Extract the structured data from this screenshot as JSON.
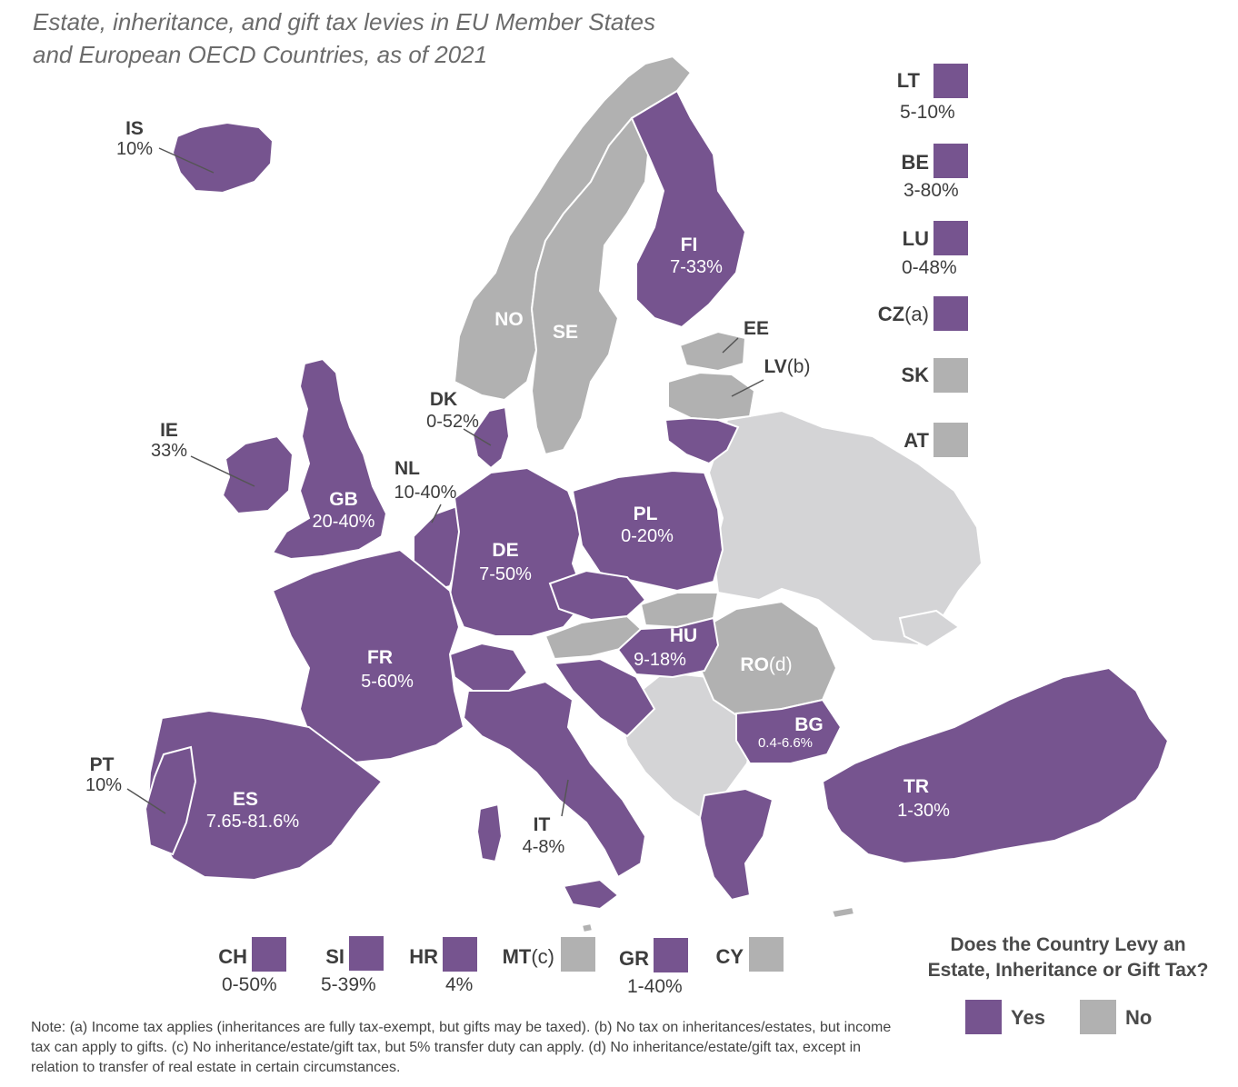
{
  "title": {
    "line1": "Estate, inheritance, and gift tax levies in EU Member States",
    "line2": "and European OECD Countries, as of 2021"
  },
  "colors": {
    "yes": "#76548f",
    "no": "#b1b1b1",
    "nonmember": "#d4d4d6",
    "border": "#ffffff"
  },
  "map_labels": {
    "IS": {
      "code": "IS",
      "rate": "10%",
      "status": "yes"
    },
    "IE": {
      "code": "IE",
      "rate": "33%",
      "status": "yes"
    },
    "GB": {
      "code": "GB",
      "rate": "20-40%",
      "status": "yes"
    },
    "NO": {
      "code": "NO",
      "status": "no"
    },
    "SE": {
      "code": "SE",
      "status": "no"
    },
    "FI": {
      "code": "FI",
      "rate": "7-33%",
      "status": "yes"
    },
    "EE": {
      "code": "EE",
      "status": "no"
    },
    "LV": {
      "code": "LV",
      "suffix": "(b)",
      "status": "no"
    },
    "DK": {
      "code": "DK",
      "rate": "0-52%",
      "status": "yes"
    },
    "NL": {
      "code": "NL",
      "rate": "10-40%",
      "status": "yes"
    },
    "PL": {
      "code": "PL",
      "rate": "0-20%",
      "status": "yes"
    },
    "DE": {
      "code": "DE",
      "rate": "7-50%",
      "status": "yes"
    },
    "FR": {
      "code": "FR",
      "rate": "5-60%",
      "status": "yes"
    },
    "HU": {
      "code": "HU",
      "rate": "9-18%",
      "status": "yes"
    },
    "RO": {
      "code": "RO",
      "suffix": "(d)",
      "status": "no"
    },
    "BG": {
      "code": "BG",
      "rate": "0.4-6.6%",
      "status": "yes"
    },
    "TR": {
      "code": "TR",
      "rate": "1-30%",
      "status": "yes"
    },
    "PT": {
      "code": "PT",
      "rate": "10%",
      "status": "yes"
    },
    "ES": {
      "code": "ES",
      "rate": "7.65-81.6%",
      "status": "yes"
    },
    "IT": {
      "code": "IT",
      "rate": "4-8%",
      "status": "yes"
    }
  },
  "legend_right": [
    {
      "code": "LT",
      "suffix": "",
      "rate": "5-10%",
      "status": "yes"
    },
    {
      "code": "BE",
      "suffix": "",
      "rate": "3-80%",
      "status": "yes"
    },
    {
      "code": "LU",
      "suffix": "",
      "rate": "0-48%",
      "status": "yes"
    },
    {
      "code": "CZ",
      "suffix": "(a)",
      "rate": "",
      "status": "yes"
    },
    {
      "code": "SK",
      "suffix": "",
      "rate": "",
      "status": "no"
    },
    {
      "code": "AT",
      "suffix": "",
      "rate": "",
      "status": "no"
    }
  ],
  "legend_bottom": [
    {
      "code": "CH",
      "suffix": "",
      "rate": "0-50%",
      "status": "yes"
    },
    {
      "code": "SI",
      "suffix": "",
      "rate": "5-39%",
      "status": "yes"
    },
    {
      "code": "HR",
      "suffix": "",
      "rate": "4%",
      "status": "yes"
    },
    {
      "code": "MT",
      "suffix": "(c)",
      "rate": "",
      "status": "no"
    },
    {
      "code": "GR",
      "suffix": "",
      "rate": "1-40%",
      "status": "yes"
    },
    {
      "code": "CY",
      "suffix": "",
      "rate": "",
      "status": "no"
    }
  ],
  "key": {
    "question_line1": "Does the Country Levy an",
    "question_line2": "Estate, Inheritance or Gift Tax?",
    "yes_label": "Yes",
    "no_label": "No"
  },
  "note": "Note: (a) Income tax applies (inheritances are fully tax-exempt, but gifts may be taxed). (b) No tax on inheritances/estates, but income tax can apply to gifts. (c) No inheritance/estate/gift tax, but 5% transfer duty can apply. (d) No inheritance/estate/gift tax, except in relation to transfer of real estate in certain circumstances."
}
